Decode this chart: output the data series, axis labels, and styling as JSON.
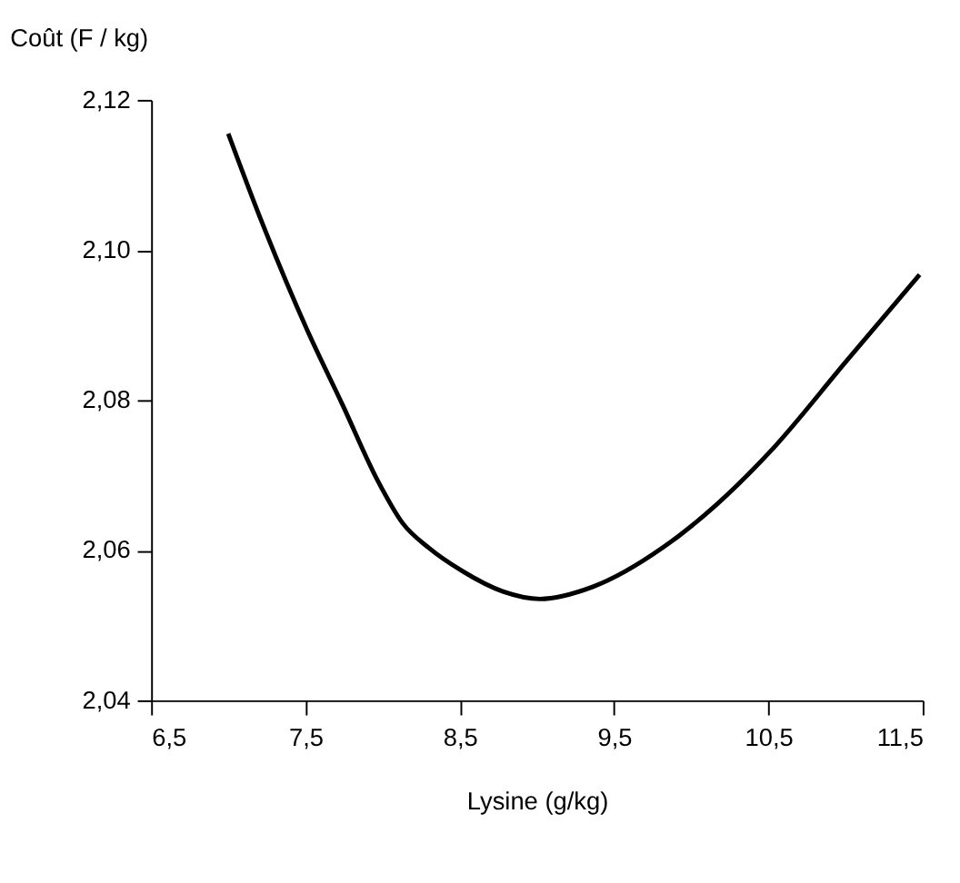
{
  "chart_data": {
    "type": "line",
    "xlabel": "Lysine (g/kg)",
    "ylabel": "Coût (F / kg)",
    "series": [
      {
        "color": "#000000",
        "x": [
          7.0,
          7.22,
          7.51,
          7.74,
          7.97,
          8.13,
          8.3,
          8.51,
          8.78,
          9.02,
          9.36,
          9.82,
          10.16,
          10.51,
          11.01,
          11.48
        ],
        "values": [
          2.1155,
          2.1036,
          2.0894,
          2.0794,
          2.0692,
          2.0636,
          2.0603,
          2.0573,
          2.0545,
          2.0535,
          2.0551,
          2.0604,
          2.066,
          2.0731,
          2.0853,
          2.0967
        ]
      }
    ],
    "xlim": [
      6.5,
      11.5
    ],
    "xticks": [
      {
        "value": 6.5,
        "label": "6,5"
      },
      {
        "value": 7.5,
        "label": "7,5"
      },
      {
        "value": 8.5,
        "label": "8,5"
      },
      {
        "value": 9.5,
        "label": "9,5"
      },
      {
        "value": 10.5,
        "label": "10,5"
      },
      {
        "value": 11.5,
        "label": "11,5"
      }
    ],
    "ylim": [
      2.04,
      2.12
    ],
    "yticks": [
      {
        "value": 2.04,
        "label": "2,04"
      },
      {
        "value": 2.06,
        "label": "2,06"
      },
      {
        "value": 2.08,
        "label": "2,08"
      },
      {
        "value": 2.1,
        "label": "2,10"
      },
      {
        "value": 2.12,
        "label": "2,12"
      }
    ],
    "grid": false,
    "marker": "none",
    "line_style": "solid"
  }
}
